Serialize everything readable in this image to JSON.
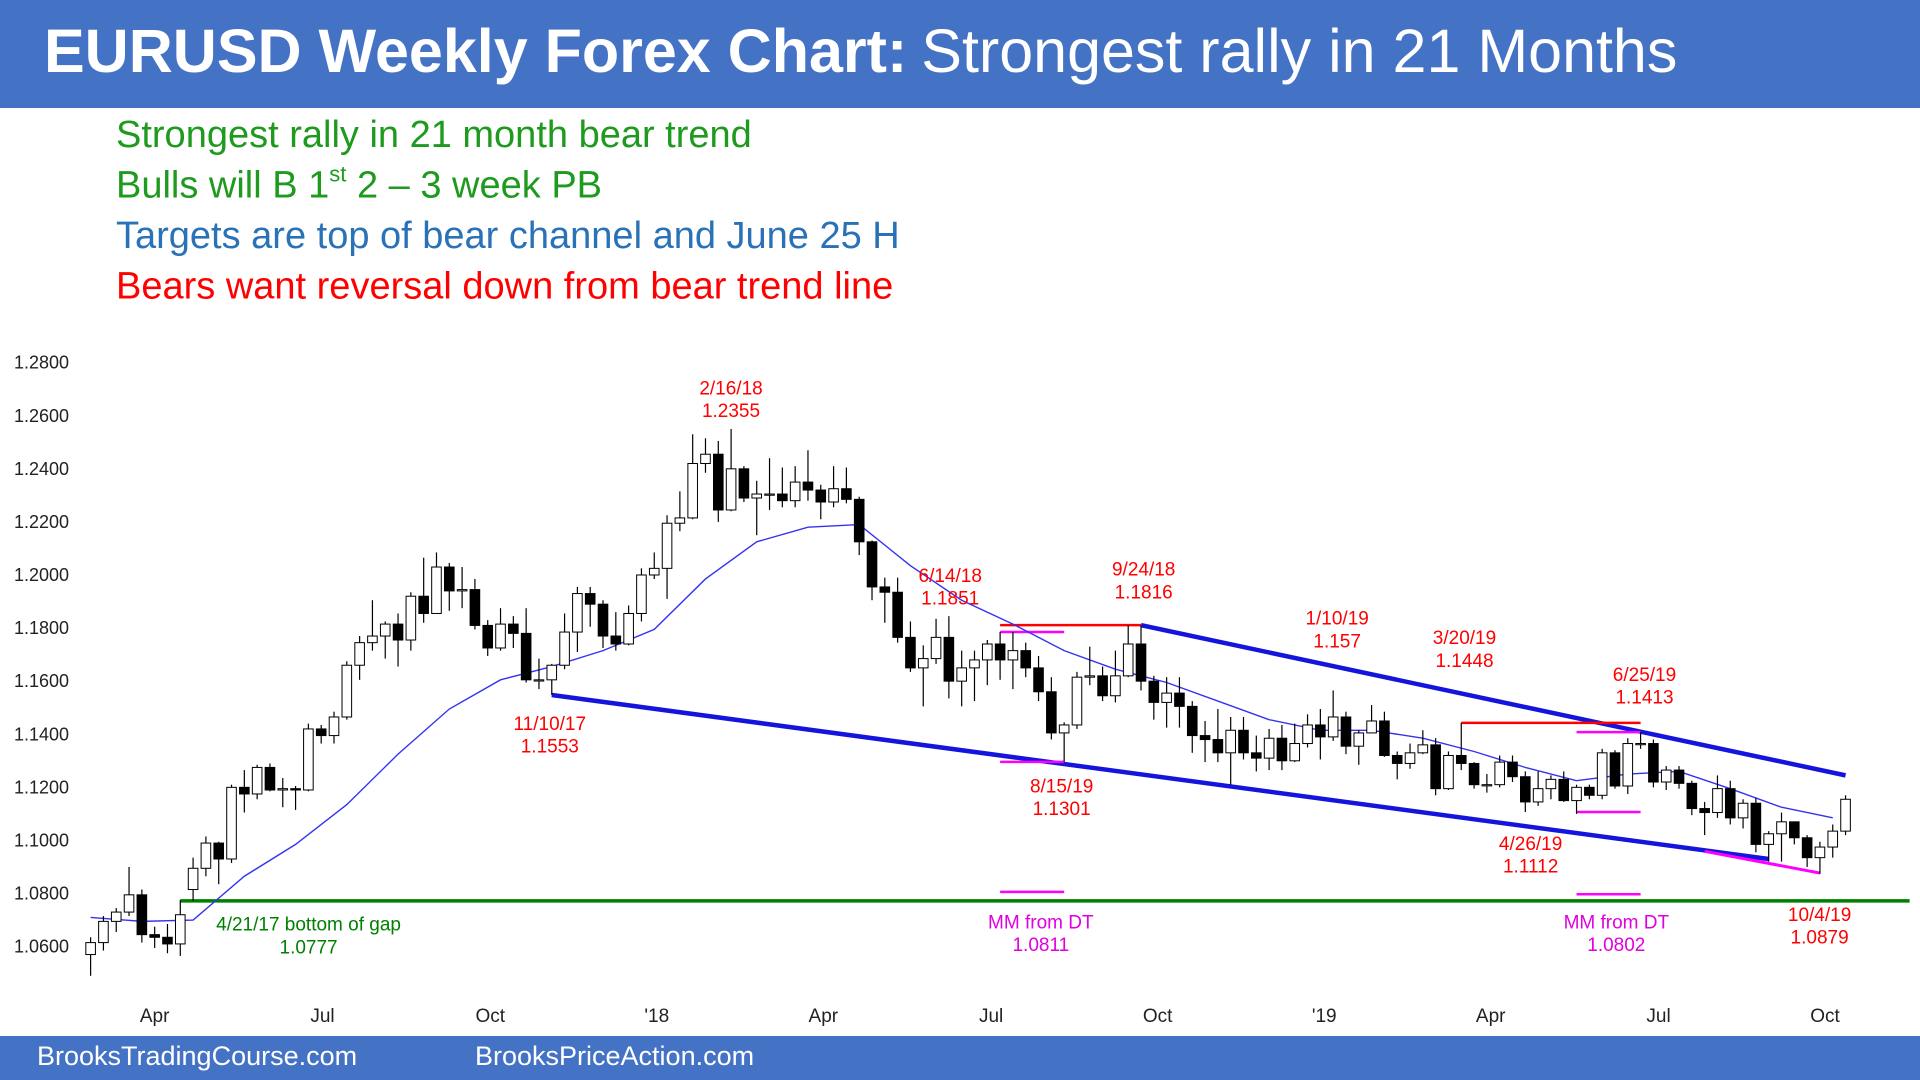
{
  "chart_data": {
    "type": "candlestick",
    "title": [
      "EURUSD Weekly Forex Chart:",
      "Strongest rally in 21 Months"
    ],
    "notes": [
      {
        "parts": [
          "Strongest rally in 21 month bear trend"
        ],
        "color": "#1e9a1e"
      },
      {
        "parts": [
          "Bulls will B 1",
          "st",
          " 2 – 3 week PB"
        ],
        "color": "#1e9a1e"
      },
      {
        "parts": [
          "Targets are top of bear channel and June 25 H"
        ],
        "color": "#2a72b8"
      },
      {
        "parts": [
          "Bears want reversal down from bear trend line"
        ],
        "color": "#ff0000"
      }
    ],
    "footer": [
      "BrooksTradingCourse.com",
      "BrooksPriceAction.com"
    ],
    "up_color": "#ffffff",
    "down_color": "#000000",
    "ma_color": "#3434f0",
    "ylim": [
      1.04,
      1.285
    ],
    "yticks": [
      {
        "value": 1.06,
        "label": "1.0600"
      },
      {
        "value": 1.08,
        "label": "1.0800"
      },
      {
        "value": 1.1,
        "label": "1.1000"
      },
      {
        "value": 1.12,
        "label": "1.1200"
      },
      {
        "value": 1.14,
        "label": "1.1400"
      },
      {
        "value": 1.16,
        "label": "1.1600"
      },
      {
        "value": 1.18,
        "label": "1.1800"
      },
      {
        "value": 1.2,
        "label": "1.2000"
      },
      {
        "value": 1.22,
        "label": "1.2200"
      },
      {
        "value": 1.24,
        "label": "1.2400"
      },
      {
        "value": 1.26,
        "label": "1.2600"
      },
      {
        "value": 1.28,
        "label": "1.2800"
      }
    ],
    "xlim": [
      -2,
      142
    ],
    "xticks": [
      {
        "value": 5,
        "label": "Apr"
      },
      {
        "value": 18.1,
        "label": "Jul"
      },
      {
        "value": 31.2,
        "label": "Oct"
      },
      {
        "value": 44.2,
        "label": "'18"
      },
      {
        "value": 57.2,
        "label": "Apr"
      },
      {
        "value": 70.3,
        "label": "Jul"
      },
      {
        "value": 83.3,
        "label": "Oct"
      },
      {
        "value": 96.3,
        "label": "'19"
      },
      {
        "value": 109.3,
        "label": "Apr"
      },
      {
        "value": 122.4,
        "label": "Jul"
      },
      {
        "value": 135.4,
        "label": "Oct"
      }
    ],
    "ohlc": [
      [
        1.0575,
        1.064,
        1.0495,
        1.062
      ],
      [
        1.062,
        1.072,
        1.059,
        1.07
      ],
      [
        1.07,
        1.075,
        1.066,
        1.0735
      ],
      [
        1.0735,
        1.0905,
        1.072,
        1.08
      ],
      [
        1.08,
        1.082,
        1.062,
        1.065
      ],
      [
        1.065,
        1.068,
        1.06,
        1.064
      ],
      [
        1.064,
        1.069,
        1.058,
        1.0615
      ],
      [
        1.0615,
        1.078,
        1.057,
        1.0725
      ],
      [
        1.082,
        1.094,
        1.0777,
        1.09
      ],
      [
        1.09,
        1.102,
        1.087,
        1.0995
      ],
      [
        1.0995,
        1.1,
        1.084,
        1.0935
      ],
      [
        1.0935,
        1.1215,
        1.092,
        1.1205
      ],
      [
        1.1205,
        1.127,
        1.111,
        1.118
      ],
      [
        1.118,
        1.129,
        1.116,
        1.128
      ],
      [
        1.128,
        1.1295,
        1.119,
        1.1195
      ],
      [
        1.1195,
        1.124,
        1.113,
        1.12
      ],
      [
        1.12,
        1.121,
        1.112,
        1.1195
      ],
      [
        1.1195,
        1.1445,
        1.119,
        1.1425
      ],
      [
        1.1425,
        1.144,
        1.137,
        1.14
      ],
      [
        1.14,
        1.149,
        1.137,
        1.147
      ],
      [
        1.147,
        1.168,
        1.146,
        1.1665
      ],
      [
        1.1665,
        1.1775,
        1.161,
        1.175
      ],
      [
        1.175,
        1.191,
        1.172,
        1.1775
      ],
      [
        1.1775,
        1.183,
        1.169,
        1.182
      ],
      [
        1.182,
        1.186,
        1.166,
        1.176
      ],
      [
        1.176,
        1.194,
        1.172,
        1.1925
      ],
      [
        1.1925,
        1.207,
        1.1825,
        1.186
      ],
      [
        1.186,
        1.209,
        1.186,
        1.2035
      ],
      [
        1.2035,
        1.205,
        1.187,
        1.1945
      ],
      [
        1.1945,
        1.2035,
        1.188,
        1.195
      ],
      [
        1.195,
        1.199,
        1.18,
        1.1815
      ],
      [
        1.1815,
        1.1835,
        1.17,
        1.173
      ],
      [
        1.173,
        1.188,
        1.172,
        1.182
      ],
      [
        1.182,
        1.185,
        1.173,
        1.1785
      ],
      [
        1.1785,
        1.188,
        1.16,
        1.161
      ],
      [
        1.161,
        1.169,
        1.1575,
        1.161
      ],
      [
        1.161,
        1.167,
        1.1553,
        1.1665
      ],
      [
        1.1665,
        1.186,
        1.165,
        1.179
      ],
      [
        1.179,
        1.196,
        1.1715,
        1.1935
      ],
      [
        1.1935,
        1.196,
        1.181,
        1.1895
      ],
      [
        1.1895,
        1.191,
        1.173,
        1.1775
      ],
      [
        1.1775,
        1.1865,
        1.172,
        1.1745
      ],
      [
        1.1745,
        1.189,
        1.174,
        1.186
      ],
      [
        1.186,
        1.203,
        1.183,
        1.2005
      ],
      [
        1.2005,
        1.209,
        1.199,
        1.203
      ],
      [
        1.203,
        1.223,
        1.1915,
        1.22
      ],
      [
        1.22,
        1.232,
        1.217,
        1.222
      ],
      [
        1.222,
        1.2535,
        1.2215,
        1.2425
      ],
      [
        1.2425,
        1.252,
        1.239,
        1.246
      ],
      [
        1.246,
        1.251,
        1.2205,
        1.225
      ],
      [
        1.225,
        1.2555,
        1.2245,
        1.2405
      ],
      [
        1.2405,
        1.2415,
        1.228,
        1.2295
      ],
      [
        1.2295,
        1.236,
        1.2155,
        1.231
      ],
      [
        1.231,
        1.2445,
        1.225,
        1.231
      ],
      [
        1.231,
        1.241,
        1.226,
        1.2285
      ],
      [
        1.2285,
        1.2415,
        1.226,
        1.2355
      ],
      [
        1.2355,
        1.2475,
        1.2285,
        1.2325
      ],
      [
        1.2325,
        1.2345,
        1.2215,
        1.228
      ],
      [
        1.228,
        1.2415,
        1.226,
        1.233
      ],
      [
        1.233,
        1.241,
        1.2275,
        1.229
      ],
      [
        1.229,
        1.23,
        1.208,
        1.213
      ],
      [
        1.213,
        1.2135,
        1.191,
        1.196
      ],
      [
        1.196,
        1.1995,
        1.1825,
        1.194
      ],
      [
        1.194,
        1.1995,
        1.175,
        1.177
      ],
      [
        1.177,
        1.183,
        1.164,
        1.1655
      ],
      [
        1.1655,
        1.174,
        1.151,
        1.169
      ],
      [
        1.169,
        1.184,
        1.167,
        1.177
      ],
      [
        1.177,
        1.185,
        1.154,
        1.1605
      ],
      [
        1.1605,
        1.172,
        1.151,
        1.1655
      ],
      [
        1.1655,
        1.172,
        1.153,
        1.1685
      ],
      [
        1.1685,
        1.176,
        1.159,
        1.1745
      ],
      [
        1.1745,
        1.179,
        1.161,
        1.1685
      ],
      [
        1.1685,
        1.179,
        1.1575,
        1.172
      ],
      [
        1.172,
        1.175,
        1.162,
        1.1655
      ],
      [
        1.1655,
        1.17,
        1.153,
        1.1565
      ],
      [
        1.1565,
        1.162,
        1.1385,
        1.141
      ],
      [
        1.141,
        1.145,
        1.1301,
        1.144
      ],
      [
        1.144,
        1.164,
        1.1425,
        1.162
      ],
      [
        1.162,
        1.1735,
        1.159,
        1.1625
      ],
      [
        1.1625,
        1.166,
        1.153,
        1.155
      ],
      [
        1.155,
        1.172,
        1.1525,
        1.1625
      ],
      [
        1.1625,
        1.1816,
        1.162,
        1.1745
      ],
      [
        1.1745,
        1.1815,
        1.157,
        1.1605
      ],
      [
        1.1605,
        1.1625,
        1.146,
        1.1525
      ],
      [
        1.1525,
        1.162,
        1.143,
        1.156
      ],
      [
        1.156,
        1.162,
        1.143,
        1.151
      ],
      [
        1.151,
        1.153,
        1.1335,
        1.14
      ],
      [
        1.14,
        1.1455,
        1.13,
        1.1385
      ],
      [
        1.1385,
        1.15,
        1.13,
        1.1335
      ],
      [
        1.1335,
        1.147,
        1.1215,
        1.142
      ],
      [
        1.142,
        1.147,
        1.131,
        1.1335
      ],
      [
        1.1335,
        1.14,
        1.1265,
        1.1315
      ],
      [
        1.1315,
        1.1425,
        1.127,
        1.139
      ],
      [
        1.139,
        1.144,
        1.127,
        1.1305
      ],
      [
        1.1305,
        1.1445,
        1.13,
        1.137
      ],
      [
        1.137,
        1.148,
        1.1355,
        1.144
      ],
      [
        1.144,
        1.15,
        1.131,
        1.1395
      ],
      [
        1.1395,
        1.157,
        1.138,
        1.147
      ],
      [
        1.147,
        1.149,
        1.133,
        1.136
      ],
      [
        1.136,
        1.142,
        1.129,
        1.141
      ],
      [
        1.141,
        1.1515,
        1.141,
        1.1455
      ],
      [
        1.1455,
        1.149,
        1.132,
        1.1325
      ],
      [
        1.1325,
        1.134,
        1.1235,
        1.1295
      ],
      [
        1.1295,
        1.137,
        1.1275,
        1.1335
      ],
      [
        1.1335,
        1.142,
        1.133,
        1.1365
      ],
      [
        1.1365,
        1.139,
        1.1175,
        1.12
      ],
      [
        1.12,
        1.134,
        1.1195,
        1.1325
      ],
      [
        1.1325,
        1.1448,
        1.127,
        1.1295
      ],
      [
        1.1295,
        1.13,
        1.12,
        1.1215
      ],
      [
        1.1215,
        1.1255,
        1.1185,
        1.1215
      ],
      [
        1.1215,
        1.1325,
        1.1205,
        1.13
      ],
      [
        1.13,
        1.1325,
        1.1225,
        1.1245
      ],
      [
        1.1245,
        1.1265,
        1.1112,
        1.115
      ],
      [
        1.115,
        1.1265,
        1.1135,
        1.12
      ],
      [
        1.12,
        1.125,
        1.116,
        1.1235
      ],
      [
        1.1235,
        1.1265,
        1.115,
        1.1155
      ],
      [
        1.1155,
        1.1215,
        1.1105,
        1.1205
      ],
      [
        1.1205,
        1.1215,
        1.116,
        1.1175
      ],
      [
        1.1175,
        1.135,
        1.116,
        1.1335
      ],
      [
        1.1335,
        1.1345,
        1.12,
        1.121
      ],
      [
        1.121,
        1.139,
        1.118,
        1.137
      ],
      [
        1.137,
        1.1413,
        1.135,
        1.137
      ],
      [
        1.137,
        1.1385,
        1.1205,
        1.1225
      ],
      [
        1.1225,
        1.1285,
        1.1195,
        1.127
      ],
      [
        1.127,
        1.1285,
        1.12,
        1.122
      ],
      [
        1.122,
        1.123,
        1.11,
        1.1125
      ],
      [
        1.1125,
        1.115,
        1.1025,
        1.111
      ],
      [
        1.111,
        1.125,
        1.109,
        1.12
      ],
      [
        1.12,
        1.123,
        1.1065,
        1.109
      ],
      [
        1.109,
        1.116,
        1.105,
        1.1145
      ],
      [
        1.1145,
        1.1165,
        1.096,
        1.099
      ],
      [
        1.099,
        1.104,
        1.0925,
        1.103
      ],
      [
        1.103,
        1.111,
        1.0925,
        1.1075
      ],
      [
        1.1075,
        1.1075,
        1.099,
        1.1015
      ],
      [
        1.1015,
        1.1025,
        1.0905,
        1.094
      ],
      [
        1.094,
        1.1,
        1.0879,
        1.098
      ],
      [
        1.098,
        1.1065,
        1.094,
        1.104
      ],
      [
        1.104,
        1.1175,
        1.1025,
        1.116
      ]
    ],
    "ma": {
      "x": [
        0,
        4,
        8,
        12,
        16,
        20,
        24,
        28,
        32,
        36,
        40,
        44,
        48,
        52,
        56,
        60,
        64,
        68,
        72,
        76,
        80,
        84,
        88,
        92,
        96,
        100,
        104,
        108,
        112,
        116,
        120,
        124,
        128,
        132,
        136
      ],
      "values": [
        1.0715,
        1.07,
        1.0705,
        1.087,
        1.099,
        1.114,
        1.133,
        1.15,
        1.161,
        1.166,
        1.172,
        1.18,
        1.199,
        1.213,
        1.2185,
        1.2195,
        1.204,
        1.191,
        1.182,
        1.172,
        1.165,
        1.16,
        1.153,
        1.146,
        1.142,
        1.142,
        1.139,
        1.134,
        1.128,
        1.123,
        1.1255,
        1.1265,
        1.12,
        1.113,
        1.109
      ]
    },
    "lines": [
      {
        "x": [
          36,
          131
        ],
        "values": [
          1.1553,
          1.0935
        ],
        "color": "#1414dc"
      },
      {
        "x": [
          82,
          137
        ],
        "values": [
          1.1816,
          1.125
        ],
        "color": "#1414dc"
      },
      {
        "x": [
          7,
          142
        ],
        "values": [
          1.0777,
          1.0777
        ],
        "color": "#008000"
      },
      {
        "x": [
          71,
          82
        ],
        "values": [
          1.1816,
          1.1816
        ],
        "color": "#ff0000"
      },
      {
        "x": [
          107,
          121
        ],
        "values": [
          1.1448,
          1.1448
        ],
        "color": "#ff0000"
      },
      {
        "x": [
          71,
          76
        ],
        "values": [
          1.179,
          1.179
        ],
        "color": "#ff00ff"
      },
      {
        "x": [
          71,
          76
        ],
        "values": [
          1.1301,
          1.1301
        ],
        "color": "#ff00ff"
      },
      {
        "x": [
          71,
          76
        ],
        "values": [
          1.0811,
          1.0811
        ],
        "color": "#ff00ff"
      },
      {
        "x": [
          116,
          121
        ],
        "values": [
          1.1413,
          1.1413
        ],
        "color": "#ff00ff"
      },
      {
        "x": [
          116,
          121
        ],
        "values": [
          1.1112,
          1.1112
        ],
        "color": "#ff00ff"
      },
      {
        "x": [
          116,
          121
        ],
        "values": [
          1.0802,
          1.0802
        ],
        "color": "#ff00ff"
      },
      {
        "x": [
          126,
          135
        ],
        "values": [
          1.0964,
          1.0882
        ],
        "color": "#ff00ff"
      }
    ],
    "annotations": [
      {
        "label": "2/16/18",
        "price": 1.2355,
        "color": "#ff0000"
      },
      {
        "label": "6/14/18",
        "price": 1.1851,
        "color": "#ff0000"
      },
      {
        "label": "9/24/18",
        "price": 1.1816,
        "color": "#ff0000"
      },
      {
        "label": "1/10/19",
        "price": 1.157,
        "color": "#ff0000"
      },
      {
        "label": "3/20/19",
        "price": 1.1448,
        "color": "#ff0000"
      },
      {
        "label": "6/25/19",
        "price": 1.1413,
        "color": "#ff0000"
      },
      {
        "label": "11/10/17",
        "price": 1.1553,
        "color": "#ff0000"
      },
      {
        "label": "8/15/19",
        "price": 1.1301,
        "color": "#ff0000"
      },
      {
        "label": "4/26/19",
        "price": 1.1112,
        "color": "#ff0000"
      },
      {
        "label": "4/21/17 bottom of gap",
        "price": 1.0777,
        "color": "#008000"
      },
      {
        "label": "MM from DT",
        "price": 1.0811,
        "color": "#e000e0"
      },
      {
        "label": "MM from DT",
        "price": 1.0802,
        "color": "#e000e0"
      },
      {
        "label": "10/4/19",
        "price": 1.0879,
        "color": "#ff0000"
      }
    ]
  }
}
